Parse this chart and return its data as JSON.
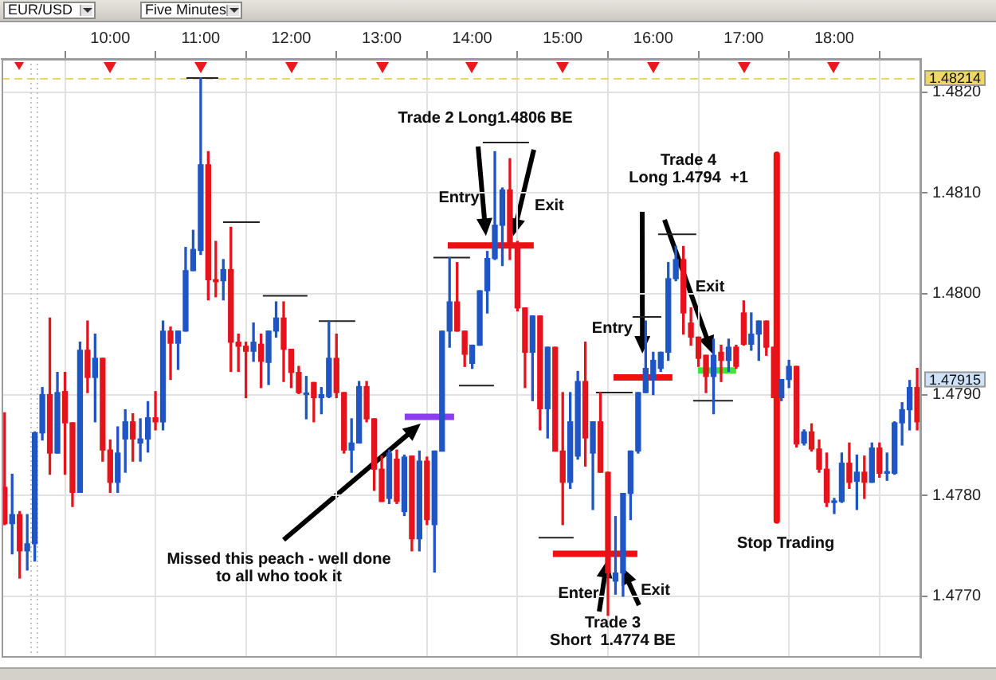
{
  "chart_data": {
    "type": "candlestick",
    "xlim": [
      8.8,
      18.96
    ],
    "ylim": [
      1.47639,
      1.48233
    ],
    "xticks": [
      {
        "value": 10,
        "label": "10:00"
      },
      {
        "value": 11,
        "label": "11:00"
      },
      {
        "value": 12,
        "label": "12:00"
      },
      {
        "value": 13,
        "label": "13:00"
      },
      {
        "value": 14,
        "label": "14:00"
      },
      {
        "value": 15,
        "label": "15:00"
      },
      {
        "value": 16,
        "label": "16:00"
      },
      {
        "value": 17,
        "label": "17:00"
      },
      {
        "value": 18,
        "label": "18:00"
      }
    ],
    "yticks": [
      {
        "value": 1.477,
        "label": "1.4770"
      },
      {
        "value": 1.478,
        "label": "1.4780"
      },
      {
        "value": 1.479,
        "label": "1.4790"
      },
      {
        "value": 1.48,
        "label": "1.4800"
      },
      {
        "value": 1.481,
        "label": "1.4810"
      },
      {
        "value": 1.482,
        "label": "1.4820"
      }
    ],
    "grid": true,
    "series": [
      {
        "color": "#1f55c4",
        "x": [
          8.9167,
          9.0833,
          9.1667,
          9.25,
          9.4167,
          9.6667,
          9.8333,
          10.0833,
          10.1667,
          10.3333,
          10.4167,
          10.5833,
          10.75,
          10.8333,
          10.9167,
          11,
          11.25,
          11.5833,
          11.75,
          11.8333,
          12.1667,
          12.3333,
          12.4167,
          12.6667,
          12.75,
          13.0833,
          13.25,
          13.4167,
          13.5833,
          13.6667,
          13.75,
          14,
          14.0833,
          14.1667,
          14.25,
          14.3333,
          14.6667,
          14.8333,
          15.0833,
          15.1667,
          15.3333,
          15.5833,
          15.6667,
          15.75,
          15.8333,
          15.9167,
          16,
          16.0833,
          16.1667,
          16.25,
          16.6667,
          16.8333,
          17.0833,
          17.1667,
          17.4167,
          17.5,
          17.6667,
          18,
          18.0833,
          18.25,
          18.4167,
          18.5833,
          18.6667,
          18.75,
          18.8333
        ],
        "ohlc": [
          [
            1.47772,
            1.47821,
            1.47742,
            1.47781
          ],
          [
            1.47745,
            1.47781,
            1.47726,
            1.47752
          ],
          [
            1.47752,
            1.47863,
            1.47735,
            1.47862
          ],
          [
            1.47862,
            1.47907,
            1.47855,
            1.479
          ],
          [
            1.47842,
            1.47922,
            1.47842,
            1.47902
          ],
          [
            1.47803,
            1.47952,
            1.47803,
            1.47944
          ],
          [
            1.47917,
            1.4796,
            1.47873,
            1.47936
          ],
          [
            1.47813,
            1.47868,
            1.47803,
            1.47842
          ],
          [
            1.47856,
            1.47885,
            1.47823,
            1.47873
          ],
          [
            1.47852,
            1.47876,
            1.47834,
            1.47856
          ],
          [
            1.47856,
            1.47893,
            1.47843,
            1.47877
          ],
          [
            1.47873,
            1.47973,
            1.47865,
            1.47963
          ],
          [
            1.47951,
            1.47963,
            1.47925,
            1.47963
          ],
          [
            1.47963,
            1.48046,
            1.47963,
            1.48023
          ],
          [
            1.48023,
            1.48063,
            1.48023,
            1.48044
          ],
          [
            1.48043,
            1.48214,
            1.48039,
            1.48128
          ],
          [
            1.48013,
            1.48034,
            1.47994,
            1.48024
          ],
          [
            1.47943,
            1.47971,
            1.47933,
            1.47952
          ],
          [
            1.47932,
            1.47963,
            1.4791,
            1.47963
          ],
          [
            1.47963,
            1.47992,
            1.47957,
            1.47976
          ],
          [
            1.479,
            1.47918,
            1.47876,
            1.47901
          ],
          [
            1.47897,
            1.47907,
            1.47881,
            1.479
          ],
          [
            1.47898,
            1.47973,
            1.47897,
            1.47936
          ],
          [
            1.47845,
            1.47876,
            1.47823,
            1.47852
          ],
          [
            1.47852,
            1.47913,
            1.47852,
            1.47908
          ],
          [
            1.47797,
            1.47845,
            1.47792,
            1.47842
          ],
          [
            1.47784,
            1.4784,
            1.4778,
            1.47838
          ],
          [
            1.47757,
            1.47844,
            1.47745,
            1.47834
          ],
          [
            1.47771,
            1.47844,
            1.47724,
            1.47844
          ],
          [
            1.47844,
            1.47963,
            1.47844,
            1.47963
          ],
          [
            1.47963,
            1.48036,
            1.47947,
            1.47992
          ],
          [
            1.47931,
            1.47949,
            1.47926,
            1.47949
          ],
          [
            1.47949,
            1.48003,
            1.47949,
            1.48003
          ],
          [
            1.48003,
            1.48042,
            1.47981,
            1.48035
          ],
          [
            1.48035,
            1.48141,
            1.48034,
            1.48068
          ],
          [
            1.48068,
            1.48105,
            1.48028,
            1.48103
          ],
          [
            1.47942,
            1.47978,
            1.47894,
            1.47978
          ],
          [
            1.47886,
            1.47947,
            1.47857,
            1.47947
          ],
          [
            1.47813,
            1.47902,
            1.47807,
            1.47873
          ],
          [
            1.47839,
            1.47923,
            1.47836,
            1.47913
          ],
          [
            1.47842,
            1.47873,
            1.47786,
            1.47873
          ],
          [
            1.47715,
            1.47779,
            1.47702,
            1.47723
          ],
          [
            1.47723,
            1.47802,
            1.477,
            1.47802
          ],
          [
            1.47802,
            1.47844,
            1.47776,
            1.47844
          ],
          [
            1.47844,
            1.47902,
            1.47842,
            1.47902
          ],
          [
            1.47902,
            1.47973,
            1.47902,
            1.47926
          ],
          [
            1.47915,
            1.47942,
            1.479,
            1.47934
          ],
          [
            1.47926,
            1.47942,
            1.47923,
            1.47942
          ],
          [
            1.47942,
            1.48031,
            1.47934,
            1.48015
          ],
          [
            1.48015,
            1.48047,
            1.48013,
            1.48034
          ],
          [
            1.47918,
            1.47955,
            1.47881,
            1.47939
          ],
          [
            1.47934,
            1.47955,
            1.47923,
            1.47947
          ],
          [
            1.4795,
            1.47981,
            1.47944,
            1.4796
          ],
          [
            1.4796,
            1.47973,
            1.47934,
            1.47973
          ],
          [
            1.47897,
            1.47915,
            1.47894,
            1.47915
          ],
          [
            1.47915,
            1.47934,
            1.47907,
            1.47928
          ],
          [
            1.47852,
            1.47865,
            1.4785,
            1.47863
          ],
          [
            1.47793,
            1.47797,
            1.47782,
            1.47794
          ],
          [
            1.47794,
            1.47842,
            1.47793,
            1.47832
          ],
          [
            1.47814,
            1.4784,
            1.47786,
            1.47823
          ],
          [
            1.47813,
            1.47852,
            1.47813,
            1.47847
          ],
          [
            1.47822,
            1.47842,
            1.47815,
            1.47823
          ],
          [
            1.47822,
            1.47873,
            1.47821,
            1.47872
          ],
          [
            1.47872,
            1.47892,
            1.4785,
            1.47885
          ],
          [
            1.47885,
            1.47914,
            1.47865,
            1.47907
          ]
        ]
      },
      {
        "color": "#e4141c",
        "x": [
          8.8333,
          9,
          9.3333,
          9.5,
          9.5833,
          9.75,
          9.9167,
          10,
          10.25,
          10.5,
          10.6667,
          11.0833,
          11.1667,
          11.3333,
          11.4167,
          11.5,
          11.6667,
          11.9167,
          12,
          12.0833,
          12.25,
          12.5,
          12.5833,
          12.8333,
          12.9167,
          13,
          13.1667,
          13.3333,
          13.5,
          13.8333,
          13.9167,
          14.4167,
          14.5,
          14.5833,
          14.75,
          14.9167,
          15,
          15.25,
          15.4167,
          15.5,
          16.3333,
          16.4167,
          16.5,
          16.5833,
          16.75,
          16.9167,
          17,
          17.25,
          17.3333,
          17.5833,
          17.75,
          17.8333,
          17.9167,
          18.1667,
          18.3333,
          18.5,
          18.9167
        ],
        "ohlc": [
          [
            1.47808,
            1.47882,
            1.47771,
            1.47772
          ],
          [
            1.47781,
            1.47784,
            1.47718,
            1.47745
          ],
          [
            1.479,
            1.47976,
            1.47821,
            1.47842
          ],
          [
            1.47903,
            1.47922,
            1.47821,
            1.47872
          ],
          [
            1.47872,
            1.47872,
            1.47789,
            1.47803
          ],
          [
            1.47944,
            1.47973,
            1.47902,
            1.47917
          ],
          [
            1.47936,
            1.47936,
            1.47834,
            1.47845
          ],
          [
            1.47845,
            1.47855,
            1.47803,
            1.47813
          ],
          [
            1.47873,
            1.47881,
            1.47834,
            1.47856
          ],
          [
            1.47877,
            1.47903,
            1.47865,
            1.47873
          ],
          [
            1.47963,
            1.47967,
            1.47915,
            1.47951
          ],
          [
            1.48128,
            1.48141,
            1.47994,
            1.48014
          ],
          [
            1.48014,
            1.48052,
            1.47997,
            1.48012
          ],
          [
            1.48024,
            1.48066,
            1.47923,
            1.47952
          ],
          [
            1.47952,
            1.4796,
            1.47923,
            1.47948
          ],
          [
            1.47948,
            1.47952,
            1.47897,
            1.47943
          ],
          [
            1.4795,
            1.4796,
            1.47907,
            1.47933
          ],
          [
            1.47976,
            1.47992,
            1.47913,
            1.47945
          ],
          [
            1.47945,
            1.47945,
            1.47907,
            1.47922
          ],
          [
            1.47922,
            1.47928,
            1.47901,
            1.47902
          ],
          [
            1.47912,
            1.47912,
            1.47873,
            1.47897
          ],
          [
            1.47936,
            1.4796,
            1.47897,
            1.47902
          ],
          [
            1.47902,
            1.47902,
            1.47842,
            1.47845
          ],
          [
            1.47908,
            1.47913,
            1.47873,
            1.47876
          ],
          [
            1.47876,
            1.47876,
            1.47805,
            1.47826
          ],
          [
            1.47826,
            1.47839,
            1.47794,
            1.47794
          ],
          [
            1.47836,
            1.47845,
            1.47792,
            1.47794
          ],
          [
            1.47839,
            1.47839,
            1.47745,
            1.47757
          ],
          [
            1.47834,
            1.47838,
            1.47771,
            1.47776
          ],
          [
            1.47992,
            1.48031,
            1.47963,
            1.47963
          ],
          [
            1.47963,
            1.47963,
            1.47928,
            1.4794
          ],
          [
            1.48103,
            1.48134,
            1.48034,
            1.48049
          ],
          [
            1.48049,
            1.48052,
            1.47983,
            1.47986
          ],
          [
            1.47986,
            1.47986,
            1.47907,
            1.47942
          ],
          [
            1.47978,
            1.47978,
            1.47865,
            1.47886
          ],
          [
            1.47947,
            1.47947,
            1.47844,
            1.47844
          ],
          [
            1.47844,
            1.47902,
            1.47771,
            1.47813
          ],
          [
            1.47913,
            1.47952,
            1.47829,
            1.47857
          ],
          [
            1.47873,
            1.47902,
            1.47823,
            1.47823
          ],
          [
            1.47823,
            1.47823,
            1.47681,
            1.47723
          ],
          [
            1.48034,
            1.48047,
            1.4796,
            1.47981
          ],
          [
            1.47971,
            1.47986,
            1.47949,
            1.47957
          ],
          [
            1.47957,
            1.47957,
            1.47928,
            1.47936
          ],
          [
            1.47939,
            1.47939,
            1.47902,
            1.47918
          ],
          [
            1.47942,
            1.47949,
            1.47913,
            1.47934
          ],
          [
            1.47947,
            1.47949,
            1.47926,
            1.47928
          ],
          [
            1.47981,
            1.47993,
            1.47949,
            1.4795
          ],
          [
            1.47973,
            1.47973,
            1.47939,
            1.47947
          ],
          [
            1.47947,
            1.47947,
            1.47897,
            1.47897
          ],
          [
            1.47928,
            1.47928,
            1.47848,
            1.47851
          ],
          [
            1.47863,
            1.47871,
            1.47844,
            1.47846
          ],
          [
            1.47846,
            1.47855,
            1.47823,
            1.47826
          ],
          [
            1.47826,
            1.47842,
            1.47789,
            1.47793
          ],
          [
            1.47832,
            1.47852,
            1.47807,
            1.47813
          ],
          [
            1.47823,
            1.47839,
            1.47797,
            1.47813
          ],
          [
            1.47847,
            1.47852,
            1.47818,
            1.47822
          ],
          [
            1.47907,
            1.47926,
            1.47865,
            1.47873
          ]
        ]
      },
      {
        "type": "line",
        "color": "#222222",
        "x": [
          10.842,
          11.194
        ],
        "values": [
          1.48214,
          1.48214
        ]
      },
      {
        "type": "line",
        "color": "#222222",
        "x": [
          11.247,
          11.652
        ],
        "values": [
          1.48071,
          1.48071
        ]
      },
      {
        "type": "line",
        "color": "#222222",
        "x": [
          11.687,
          12.18
        ],
        "values": [
          1.47998,
          1.47998
        ]
      },
      {
        "type": "line",
        "color": "#222222",
        "x": [
          12.304,
          12.708
        ],
        "values": [
          1.47973,
          1.47973
        ]
      },
      {
        "type": "line",
        "color": "#222222",
        "x": [
          13.571,
          13.976
        ],
        "values": [
          1.48036,
          1.48036
        ]
      },
      {
        "type": "line",
        "color": "#222222",
        "x": [
          13.853,
          14.24
        ],
        "values": [
          1.47909,
          1.47909
        ]
      },
      {
        "type": "line",
        "color": "#222222",
        "x": [
          14.117,
          14.627
        ],
        "values": [
          1.4815,
          1.4815
        ]
      },
      {
        "type": "line",
        "color": "#222222",
        "x": [
          14.733,
          15.12
        ],
        "values": [
          1.47758,
          1.47758
        ]
      },
      {
        "type": "line",
        "color": "#222222",
        "x": [
          15.367,
          15.772
        ],
        "values": [
          1.47902,
          1.47902
        ]
      },
      {
        "type": "line",
        "color": "#222222",
        "x": [
          15.772,
          16.089
        ],
        "values": [
          1.47977,
          1.47977
        ]
      },
      {
        "type": "line",
        "color": "#222222",
        "x": [
          16.054,
          16.476
        ],
        "values": [
          1.48059,
          1.48059
        ]
      },
      {
        "type": "line",
        "color": "#222222",
        "x": [
          16.441,
          16.881
        ],
        "values": [
          1.47894,
          1.47894
        ]
      },
      {
        "type": "line",
        "color": "#8b3df2",
        "x": [
          13.254,
          13.8
        ],
        "values": [
          1.47878,
          1.47878
        ]
      },
      {
        "type": "line",
        "color": "#ee1111",
        "x": [
          13.73,
          14.68
        ],
        "values": [
          1.48048,
          1.48048
        ]
      },
      {
        "type": "line",
        "color": "#ee1111",
        "x": [
          15.561,
          16.212
        ],
        "values": [
          1.47917,
          1.47917
        ]
      },
      {
        "type": "line",
        "color": "#38e838",
        "x": [
          16.494,
          16.916
        ],
        "values": [
          1.47924,
          1.47924
        ]
      },
      {
        "type": "line",
        "color": "#ee1111",
        "x": [
          14.891,
          15.825
        ],
        "values": [
          1.47742,
          1.47742
        ]
      },
      {
        "type": "line",
        "color": "#ee1111",
        "x": [
          17.365,
          17.365
        ],
        "values": [
          1.48138,
          1.47775
        ]
      }
    ],
    "ref_lines": [
      {
        "axis": "y",
        "value": 1.48214,
        "label": "1.48214",
        "color": "#ecd768",
        "line_style": "dashed"
      },
      {
        "axis": "x",
        "value": 9.118,
        "color": "#c4c4c4",
        "line_style": "dotted"
      },
      {
        "axis": "x",
        "value": 9.193,
        "color": "#c4c4c4",
        "line_style": "dotted"
      }
    ],
    "annotations": [
      "Trade 2 Long1.4806 BE",
      {
        "text": "Entry",
        "x": 14.161,
        "y": 1.48048
      },
      {
        "text": "Exit",
        "x": 14.427,
        "y": 1.48048
      },
      "Trade 4\nLong 1.4794  +1",
      "Exit",
      {
        "text": "Entry",
        "x": 15.881,
        "y": 1.47917
      },
      "Missed this peach - well done\nto all who took it",
      {
        "text": "Enter",
        "x": 15.503,
        "y": 1.47742
      },
      {
        "text": "Exit",
        "x": 15.587,
        "y": 1.47742
      },
      "Trade 3\nShort  1.4774 BE",
      "Stop Trading",
      "EUR/USD",
      "Five Minutes",
      "1.47915"
    ]
  }
}
